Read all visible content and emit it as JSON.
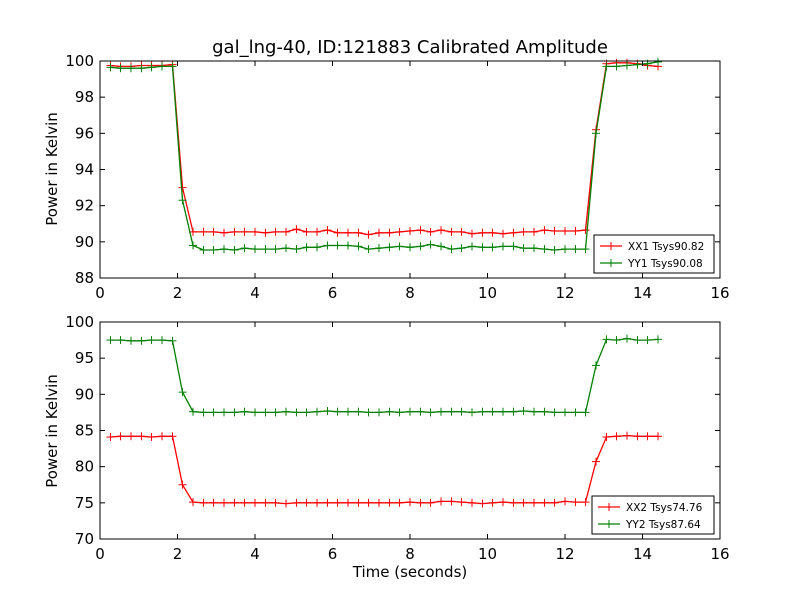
{
  "chart_data": [
    {
      "type": "line",
      "title": "gal_lng-40, ID:121883 Calibrated Amplitude",
      "xlabel": "",
      "ylabel": "Power in Kelvin",
      "xlim": [
        0,
        16
      ],
      "ylim": [
        88,
        100
      ],
      "xticks": [
        "0",
        "2",
        "4",
        "6",
        "8",
        "10",
        "12",
        "14",
        "16"
      ],
      "yticks": [
        "88",
        "90",
        "92",
        "94",
        "96",
        "98",
        "100"
      ],
      "legend_position": "lower-right",
      "x": [
        0.27,
        0.53,
        0.8,
        1.07,
        1.33,
        1.6,
        1.87,
        2.13,
        2.4,
        2.67,
        2.93,
        3.2,
        3.47,
        3.73,
        4.0,
        4.27,
        4.53,
        4.8,
        5.07,
        5.33,
        5.6,
        5.87,
        6.13,
        6.4,
        6.67,
        6.93,
        7.2,
        7.47,
        7.73,
        8.0,
        8.27,
        8.53,
        8.8,
        9.07,
        9.33,
        9.6,
        9.87,
        10.13,
        10.4,
        10.67,
        10.93,
        11.2,
        11.47,
        11.73,
        12.0,
        12.27,
        12.53,
        12.8,
        13.07,
        13.33,
        13.6,
        13.87,
        14.13,
        14.4
      ],
      "series": [
        {
          "name": "XX1 Tsys90.82",
          "color": "#ff0000",
          "values": [
            99.75,
            99.7,
            99.7,
            99.75,
            99.75,
            99.75,
            99.8,
            93.0,
            90.55,
            90.55,
            90.55,
            90.5,
            90.55,
            90.55,
            90.55,
            90.5,
            90.55,
            90.55,
            90.7,
            90.55,
            90.55,
            90.65,
            90.5,
            90.5,
            90.5,
            90.4,
            90.5,
            90.5,
            90.55,
            90.6,
            90.65,
            90.55,
            90.65,
            90.55,
            90.55,
            90.45,
            90.5,
            90.5,
            90.45,
            90.5,
            90.55,
            90.55,
            90.65,
            90.6,
            90.6,
            90.6,
            90.65,
            96.2,
            99.85,
            99.9,
            99.9,
            99.85,
            99.75,
            99.7
          ]
        },
        {
          "name": "YY1 Tsys90.08",
          "color": "#008000",
          "values": [
            99.65,
            99.6,
            99.6,
            99.6,
            99.65,
            99.7,
            99.7,
            92.3,
            89.8,
            89.55,
            89.55,
            89.6,
            89.55,
            89.65,
            89.6,
            89.6,
            89.6,
            89.65,
            89.6,
            89.7,
            89.7,
            89.8,
            89.8,
            89.8,
            89.75,
            89.6,
            89.65,
            89.7,
            89.75,
            89.7,
            89.75,
            89.85,
            89.75,
            89.6,
            89.65,
            89.75,
            89.7,
            89.7,
            89.75,
            89.75,
            89.65,
            89.65,
            89.6,
            89.55,
            89.6,
            89.6,
            89.6,
            96.0,
            99.7,
            99.7,
            99.75,
            99.8,
            99.85,
            99.95
          ]
        }
      ]
    },
    {
      "type": "line",
      "title": "",
      "xlabel": "Time (seconds)",
      "ylabel": "Power in Kelvin",
      "xlim": [
        0,
        16
      ],
      "ylim": [
        70,
        100
      ],
      "xticks": [
        "0",
        "2",
        "4",
        "6",
        "8",
        "10",
        "12",
        "14",
        "16"
      ],
      "yticks": [
        "70",
        "75",
        "80",
        "85",
        "90",
        "95",
        "100"
      ],
      "legend_position": "lower-right",
      "x": [
        0.27,
        0.53,
        0.8,
        1.07,
        1.33,
        1.6,
        1.87,
        2.13,
        2.4,
        2.67,
        2.93,
        3.2,
        3.47,
        3.73,
        4.0,
        4.27,
        4.53,
        4.8,
        5.07,
        5.33,
        5.6,
        5.87,
        6.13,
        6.4,
        6.67,
        6.93,
        7.2,
        7.47,
        7.73,
        8.0,
        8.27,
        8.53,
        8.8,
        9.07,
        9.33,
        9.6,
        9.87,
        10.13,
        10.4,
        10.67,
        10.93,
        11.2,
        11.47,
        11.73,
        12.0,
        12.27,
        12.53,
        12.8,
        13.07,
        13.33,
        13.6,
        13.87,
        14.13,
        14.4
      ],
      "series": [
        {
          "name": "XX2 Tsys74.76",
          "color": "#ff0000",
          "values": [
            84.1,
            84.2,
            84.2,
            84.2,
            84.1,
            84.2,
            84.2,
            77.5,
            75.1,
            75.0,
            75.0,
            75.0,
            75.0,
            75.0,
            75.0,
            75.0,
            75.0,
            74.9,
            75.0,
            75.0,
            75.0,
            75.0,
            75.0,
            75.0,
            75.0,
            75.0,
            75.0,
            75.0,
            75.0,
            75.1,
            75.0,
            75.0,
            75.2,
            75.2,
            75.1,
            75.0,
            74.9,
            75.0,
            75.1,
            75.0,
            75.0,
            75.0,
            75.0,
            75.0,
            75.2,
            75.1,
            75.1,
            80.7,
            84.1,
            84.2,
            84.3,
            84.2,
            84.2,
            84.2
          ]
        },
        {
          "name": "YY2 Tsys87.64",
          "color": "#008000",
          "values": [
            97.5,
            97.5,
            97.4,
            97.4,
            97.5,
            97.5,
            97.4,
            90.3,
            87.6,
            87.5,
            87.5,
            87.5,
            87.5,
            87.6,
            87.5,
            87.5,
            87.5,
            87.6,
            87.5,
            87.5,
            87.6,
            87.7,
            87.6,
            87.6,
            87.6,
            87.5,
            87.5,
            87.6,
            87.5,
            87.6,
            87.6,
            87.5,
            87.6,
            87.6,
            87.6,
            87.5,
            87.6,
            87.6,
            87.6,
            87.6,
            87.7,
            87.6,
            87.6,
            87.5,
            87.5,
            87.5,
            87.5,
            94.0,
            97.6,
            97.5,
            97.7,
            97.5,
            97.5,
            97.6
          ]
        }
      ]
    }
  ]
}
